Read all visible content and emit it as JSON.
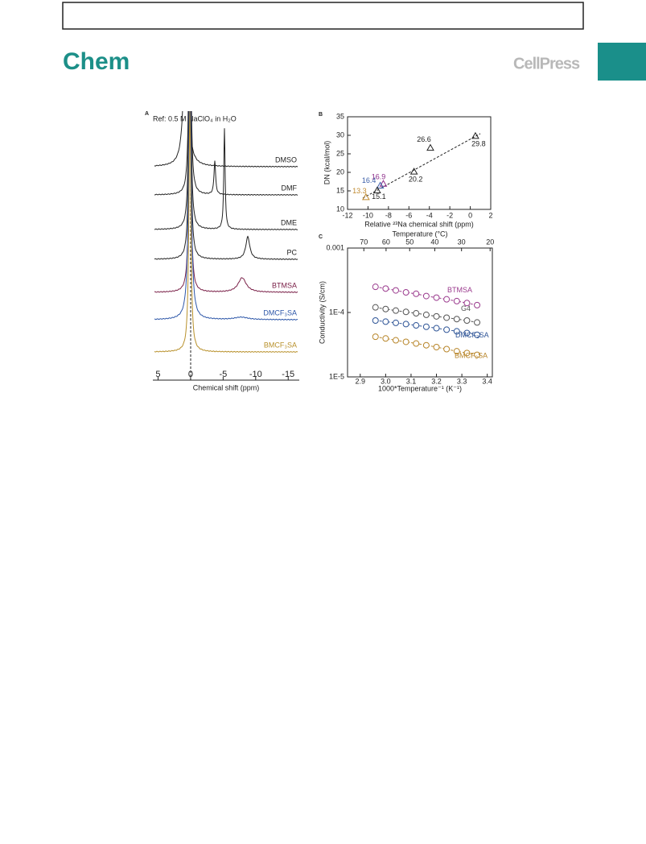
{
  "header": {
    "journal": "Chem",
    "publisher": "CellPress"
  },
  "figure": {
    "panel_a": {
      "label": "A",
      "ref": "Ref: 0.5 M NaClO₄ in H₂O",
      "xlabel": "Chemical shift (ppm)",
      "xlim": [
        5.8,
        -16.7
      ],
      "xticks": [
        5,
        0,
        -5,
        -10,
        -15
      ],
      "traces": [
        {
          "name": "DMSO",
          "color": "#222222"
        },
        {
          "name": "DMF",
          "color": "#222222"
        },
        {
          "name": "DME",
          "color": "#222222"
        },
        {
          "name": "PC",
          "color": "#222222"
        },
        {
          "name": "BTMSA",
          "color": "#7a2048"
        },
        {
          "name": "DMCF₃SA",
          "color": "#2c56a8"
        },
        {
          "name": "BMCF₃SA",
          "color": "#b8902a"
        }
      ]
    },
    "panel_b": {
      "label": "B",
      "type": "scatter",
      "xlabel": "Relative ²³Na chemical shift (ppm)",
      "ylabel": "DN (kcal/mol)",
      "xlim": [
        -12,
        2
      ],
      "ylim": [
        10,
        35
      ],
      "xticks": [
        -12,
        -10,
        -8,
        -6,
        -4,
        -2,
        0,
        2
      ],
      "yticks": [
        10,
        15,
        20,
        25,
        30,
        35
      ],
      "x": [
        0.5,
        -3.9,
        -5.5,
        -8.5,
        -8.8,
        -9.1,
        -10.2
      ],
      "values": [
        29.8,
        26.6,
        20.2,
        16.9,
        16.4,
        15.1,
        13.3
      ],
      "colors": [
        "#222222",
        "#222222",
        "#222222",
        "#8b2a88",
        "#3b5ea8",
        "#222222",
        "#c08a30"
      ]
    },
    "panel_c": {
      "label": "C",
      "type": "scatter",
      "log_y": true,
      "xlabel": "1000*Temperature⁻¹ (K⁻¹)",
      "ylabel": "Conductivity (S/cm)",
      "top_xlabel": "Temperature (°C)",
      "xlim": [
        2.85,
        3.42
      ],
      "ylim": [
        1e-05,
        0.001
      ],
      "xticks": [
        2.9,
        {
          "value": 3,
          "label": "3.0"
        },
        3.1,
        3.2,
        3.3,
        3.4
      ],
      "yticks": [
        {
          "value": 1e-05,
          "label": "1E-5"
        },
        {
          "value": 0.0001,
          "label": "1E-4"
        },
        0.001
      ],
      "top_xticks": [
        70,
        60,
        50,
        40,
        30,
        20
      ],
      "x": [
        2.96,
        3.0,
        3.04,
        3.08,
        3.12,
        3.16,
        3.2,
        3.24,
        3.28,
        3.32,
        3.36
      ],
      "series": [
        {
          "name": "BTMSA",
          "color": "#9b3b8e",
          "values": [
            0.00025,
            0.000235,
            0.00022,
            0.000205,
            0.000195,
            0.00018,
            0.00017,
            0.00016,
            0.00015,
            0.00014,
            0.00013
          ]
        },
        {
          "name": "G4",
          "color": "#555555",
          "values": [
            0.00012,
            0.000113,
            0.000107,
            0.000102,
            9.7e-05,
            9.2e-05,
            8.7e-05,
            8.3e-05,
            7.9e-05,
            7.5e-05,
            7e-05
          ]
        },
        {
          "name": "DMCF₃SA",
          "color": "#2f5597",
          "values": [
            7.5e-05,
            7.2e-05,
            6.9e-05,
            6.6e-05,
            6.3e-05,
            6e-05,
            5.7e-05,
            5.4e-05,
            5.1e-05,
            4.8e-05,
            4.5e-05
          ]
        },
        {
          "name": "BMCF₃SA",
          "color": "#b8862b",
          "values": [
            4.2e-05,
            3.95e-05,
            3.7e-05,
            3.5e-05,
            3.3e-05,
            3.1e-05,
            2.9e-05,
            2.7e-05,
            2.5e-05,
            2.35e-05,
            2.2e-05
          ]
        }
      ]
    }
  }
}
